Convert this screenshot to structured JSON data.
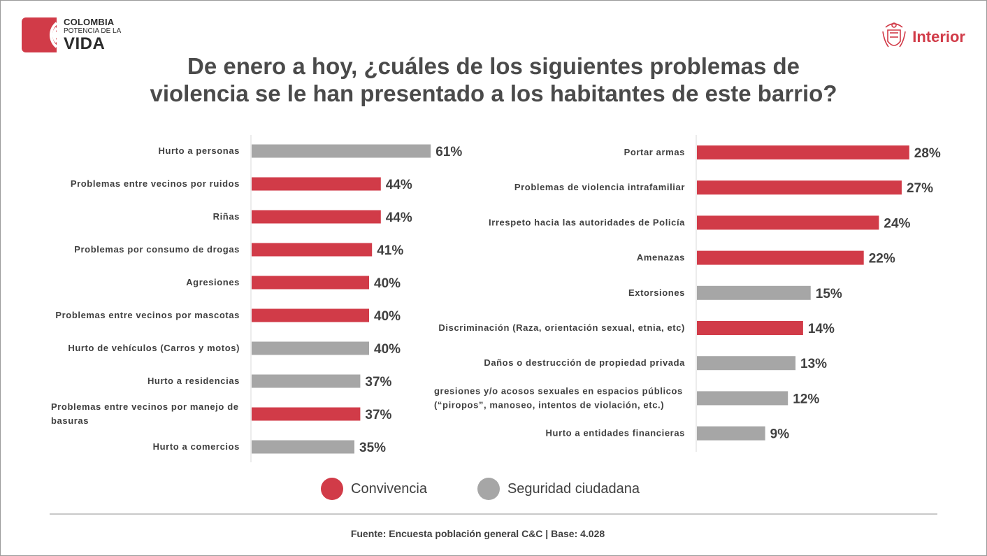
{
  "logo": {
    "brand_line1": "COLOMBIA",
    "brand_line2": "POTENCIA DE LA",
    "brand_line3": "VIDA",
    "ministry": "Interior"
  },
  "title": {
    "line1": "De enero a hoy, ¿cuáles de los siguientes problemas de",
    "line2": "violencia se le han presentado a los habitantes de este barrio?"
  },
  "colors": {
    "convivencia": "#d13b48",
    "seguridad": "#a6a6a6"
  },
  "chart_data": [
    {
      "type": "bar",
      "orientation": "horizontal",
      "xlim": [
        0,
        70
      ],
      "bars": [
        {
          "label": [
            "Hurto a personas"
          ],
          "value": 61,
          "display": "61%",
          "group": "seguridad"
        },
        {
          "label": [
            "Problemas entre vecinos por ruidos"
          ],
          "value": 44,
          "display": "44%",
          "group": "convivencia"
        },
        {
          "label": [
            "Riñas"
          ],
          "value": 44,
          "display": "44%",
          "group": "convivencia"
        },
        {
          "label": [
            "Problemas por consumo de drogas"
          ],
          "value": 41,
          "display": "41%",
          "group": "convivencia"
        },
        {
          "label": [
            "Agresiones"
          ],
          "value": 40,
          "display": "40%",
          "group": "convivencia"
        },
        {
          "label": [
            "Problemas entre vecinos por mascotas"
          ],
          "value": 40,
          "display": "40%",
          "group": "convivencia"
        },
        {
          "label": [
            "Hurto de vehículos (Carros y motos)"
          ],
          "value": 40,
          "display": "40%",
          "group": "seguridad"
        },
        {
          "label": [
            "Hurto a residencias"
          ],
          "value": 37,
          "display": "37%",
          "group": "seguridad"
        },
        {
          "label": [
            "Problemas entre vecinos por manejo de",
            "basuras"
          ],
          "value": 37,
          "display": "37%",
          "group": "convivencia"
        },
        {
          "label": [
            "Hurto a comercios"
          ],
          "value": 35,
          "display": "35%",
          "group": "seguridad"
        }
      ]
    },
    {
      "type": "bar",
      "orientation": "horizontal",
      "xlim": [
        0,
        35
      ],
      "bars": [
        {
          "label": [
            "Portar armas"
          ],
          "value": 28,
          "display": "28%",
          "group": "convivencia"
        },
        {
          "label": [
            "Problemas de violencia intrafamiliar"
          ],
          "value": 27,
          "display": "27%",
          "group": "convivencia"
        },
        {
          "label": [
            "Irrespeto hacia las autoridades de Policía"
          ],
          "value": 24,
          "display": "24%",
          "group": "convivencia"
        },
        {
          "label": [
            "Amenazas"
          ],
          "value": 22,
          "display": "22%",
          "group": "convivencia"
        },
        {
          "label": [
            "Extorsiones"
          ],
          "value": 15,
          "display": "15%",
          "group": "seguridad"
        },
        {
          "label": [
            "Discriminación (Raza, orientación sexual, etnia, etc)"
          ],
          "value": 14,
          "display": "14%",
          "group": "convivencia"
        },
        {
          "label": [
            "Daños o destrucción de propiedad privada"
          ],
          "value": 13,
          "display": "13%",
          "group": "seguridad"
        },
        {
          "label": [
            "gresiones y/o acosos sexuales en espacios públicos",
            "(“piropos”, manoseo, intentos de violación, etc.)"
          ],
          "value": 12,
          "display": "12%",
          "group": "seguridad"
        },
        {
          "label": [
            "Hurto a entidades financieras"
          ],
          "value": 9,
          "display": "9%",
          "group": "seguridad"
        }
      ]
    }
  ],
  "legend": {
    "convivencia": "Convivencia",
    "seguridad": "Seguridad ciudadana"
  },
  "source": "Fuente: Encuesta población general C&C | Base: 4.028"
}
